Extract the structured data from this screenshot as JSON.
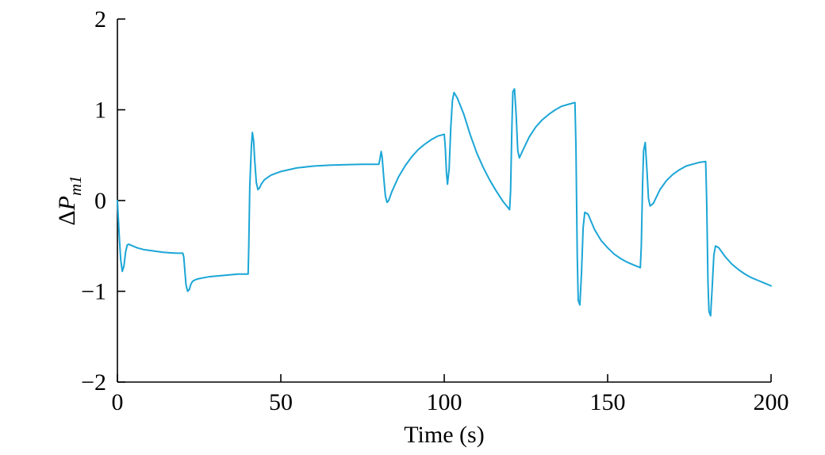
{
  "chart_data": {
    "type": "line",
    "xlabel": "Time (s)",
    "ylabel": {
      "prefix": "Δ",
      "var": "P",
      "sub": "m1"
    },
    "xlim": [
      0,
      200
    ],
    "ylim": [
      -2,
      2
    ],
    "xticks": [
      0,
      50,
      100,
      150,
      200
    ],
    "yticks": [
      -2,
      -1,
      0,
      1,
      2
    ],
    "x_tick_labels": [
      "0",
      "50",
      "100",
      "150",
      "200"
    ],
    "y_tick_labels": [
      "−2",
      "−1",
      "0",
      "1",
      "2"
    ],
    "grid": false,
    "line_color": "#1ba6d6",
    "series": [
      {
        "x": [
          0,
          0.5,
          1,
          1.5,
          2,
          2.5,
          3,
          3.5,
          4,
          6,
          8,
          10,
          12,
          14,
          16,
          18,
          20,
          20.3,
          20.7,
          21,
          21.5,
          22,
          22.5,
          23,
          23.5,
          24,
          25,
          28,
          31,
          34,
          37,
          40,
          40.2,
          40.5,
          41,
          41.3,
          41.7,
          42,
          42.5,
          43,
          43.5,
          44,
          45,
          47,
          50,
          55,
          60,
          65,
          70,
          75,
          80,
          80.3,
          80.7,
          81,
          81.5,
          82,
          82.5,
          83,
          84,
          86,
          88,
          90,
          92,
          94,
          96,
          98,
          100,
          100.3,
          100.7,
          101,
          101.5,
          102,
          102.5,
          103,
          104,
          106,
          108,
          110,
          112,
          114,
          116,
          118,
          120,
          120.3,
          120.7,
          121,
          121.5,
          122,
          122.5,
          123,
          124,
          126,
          128,
          130,
          132,
          134,
          136,
          138,
          140,
          140.3,
          140.7,
          141,
          141.5,
          142,
          142.5,
          143,
          144,
          146,
          148,
          150,
          152,
          154,
          156,
          158,
          160,
          160.3,
          160.7,
          161,
          161.5,
          162,
          162.5,
          163,
          164,
          166,
          168,
          170,
          172,
          174,
          176,
          178,
          180,
          180.3,
          180.7,
          181,
          181.5,
          182,
          182.5,
          183,
          184,
          186,
          188,
          190,
          192,
          194,
          196,
          198,
          200
        ],
        "y": [
          0,
          -0.35,
          -0.65,
          -0.78,
          -0.72,
          -0.57,
          -0.49,
          -0.48,
          -0.49,
          -0.52,
          -0.54,
          -0.55,
          -0.56,
          -0.57,
          -0.575,
          -0.58,
          -0.58,
          -0.62,
          -0.8,
          -0.93,
          -1.0,
          -0.98,
          -0.92,
          -0.89,
          -0.88,
          -0.87,
          -0.86,
          -0.84,
          -0.83,
          -0.82,
          -0.81,
          -0.81,
          -0.5,
          0.15,
          0.6,
          0.75,
          0.65,
          0.45,
          0.2,
          0.12,
          0.14,
          0.18,
          0.23,
          0.28,
          0.32,
          0.36,
          0.38,
          0.39,
          0.395,
          0.4,
          0.4,
          0.45,
          0.54,
          0.48,
          0.25,
          0.05,
          -0.02,
          0.0,
          0.1,
          0.26,
          0.38,
          0.48,
          0.56,
          0.62,
          0.67,
          0.71,
          0.73,
          0.6,
          0.3,
          0.18,
          0.35,
          0.8,
          1.1,
          1.19,
          1.13,
          0.95,
          0.72,
          0.52,
          0.36,
          0.22,
          0.1,
          -0.01,
          -0.1,
          0.1,
          0.8,
          1.2,
          1.23,
          0.95,
          0.55,
          0.47,
          0.55,
          0.7,
          0.81,
          0.89,
          0.95,
          1.0,
          1.04,
          1.06,
          1.08,
          0.6,
          -0.6,
          -1.1,
          -1.15,
          -0.8,
          -0.3,
          -0.13,
          -0.15,
          -0.32,
          -0.44,
          -0.52,
          -0.59,
          -0.64,
          -0.68,
          -0.71,
          -0.74,
          -0.5,
          0.2,
          0.55,
          0.64,
          0.35,
          0.02,
          -0.06,
          -0.03,
          0.12,
          0.22,
          0.29,
          0.34,
          0.38,
          0.4,
          0.42,
          0.43,
          0.0,
          -0.9,
          -1.22,
          -1.27,
          -0.95,
          -0.6,
          -0.5,
          -0.52,
          -0.62,
          -0.7,
          -0.76,
          -0.81,
          -0.85,
          -0.88,
          -0.91,
          -0.94
        ]
      }
    ]
  }
}
